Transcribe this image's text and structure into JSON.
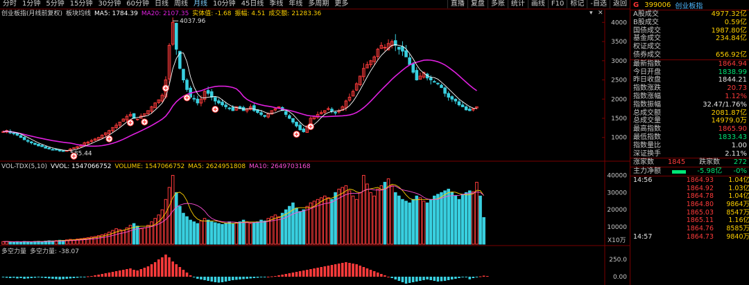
{
  "toolbar": {
    "periods": [
      "分时",
      "1分钟",
      "5分钟",
      "15分钟",
      "30分钟",
      "60分钟",
      "日线",
      "周线",
      "月线",
      "10分钟",
      "45日线",
      "季线",
      "年线",
      "多周期",
      "更多"
    ],
    "active_period": "月线",
    "tools": [
      "直播",
      "复盘",
      "多账",
      "统计",
      "画线",
      "F10",
      "标记",
      "-自选",
      "返回"
    ]
  },
  "chart_info": {
    "name": "创业板指(月线前复权)",
    "indicator": "板块均线",
    "ma5_label": "MA5: 1784.39",
    "ma20_label": "MA20: 2107.35",
    "body_label": "实体值: -1.68",
    "amp_label": "振幅: 4.51",
    "amount_label": "成交额: 21283.36",
    "max_price_label": "4037.96",
    "min_price_label": "585.44"
  },
  "vol_info": {
    "name": "VOL-TDX(5,10)",
    "vvol": "VVOL: 1547066752",
    "volume": "VOLUME: 1547066752",
    "ma5": "MA5: 2624951808",
    "ma10": "MA10: 2649703168",
    "unit": "X10万"
  },
  "osc_info": {
    "name": "多空力量",
    "value": "多空力量: -38.07"
  },
  "axes": {
    "price_ticks": [
      "4000",
      "3500",
      "3000",
      "2500",
      "2000",
      "1500",
      "1000"
    ],
    "vol_ticks": [
      "40000",
      "30000",
      "20000",
      "10000"
    ],
    "osc_ticks": [
      "250.0",
      "0.00"
    ]
  },
  "colors": {
    "up": "#ff3b3b",
    "down": "#39d0e0",
    "ma5": "#ffffff",
    "ma20": "#e020e0",
    "ma_vol10": "#ff4fd8"
  },
  "quote": {
    "code": "399006",
    "name": "创业板指",
    "flag": "G",
    "rows1": [
      {
        "label": "A股成交",
        "value": "4977.32亿",
        "cls": "yel"
      },
      {
        "label": "B股成交",
        "value": "0.59亿",
        "cls": "yel"
      },
      {
        "label": "国债成交",
        "value": "1987.80亿",
        "cls": "yel"
      },
      {
        "label": "基金成交",
        "value": "234.84亿",
        "cls": "yel"
      },
      {
        "label": "权证成交",
        "value": "",
        "cls": "yel"
      },
      {
        "label": "债券成交",
        "value": "656.92亿",
        "cls": "yel"
      }
    ],
    "rows2": [
      {
        "label": "最新指数",
        "value": "1864.94",
        "cls": "red"
      },
      {
        "label": "今日开盘",
        "value": "1838.99",
        "cls": "grn"
      },
      {
        "label": "昨日收盘",
        "value": "1844.21",
        "cls": "wht"
      },
      {
        "label": "指数涨跌",
        "value": "20.73",
        "cls": "red"
      },
      {
        "label": "指数涨幅",
        "value": "1.12%",
        "cls": "red"
      },
      {
        "label": "指数振幅",
        "value": "32.47/1.76%",
        "cls": "wht"
      },
      {
        "label": "总成交额",
        "value": "2081.87亿",
        "cls": "yel"
      },
      {
        "label": "总成交量",
        "value": "14979.0万",
        "cls": "yel"
      },
      {
        "label": "最高指数",
        "value": "1865.90",
        "cls": "red"
      },
      {
        "label": "最低指数",
        "value": "1833.43",
        "cls": "grn"
      },
      {
        "label": "指数量比",
        "value": "1.00",
        "cls": "wht"
      },
      {
        "label": "深证换手",
        "value": "2.11%",
        "cls": "wht"
      }
    ],
    "rise_label": "涨家数",
    "rise_value": "1845",
    "fall_label": "跌家数",
    "fall_value": "272",
    "flow_label": "主力净额",
    "flow_value": "-5.98亿",
    "flow_pct": "-0%",
    "ticks": [
      {
        "t": "14:56",
        "p": "1864.93",
        "v": "1.04亿"
      },
      {
        "t": "",
        "p": "1864.92",
        "v": "1.03亿"
      },
      {
        "t": "",
        "p": "1864.78",
        "v": "1.04亿"
      },
      {
        "t": "",
        "p": "1864.80",
        "v": "9864万"
      },
      {
        "t": "",
        "p": "1865.03",
        "v": "8547万"
      },
      {
        "t": "",
        "p": "1865.11",
        "v": "1.16亿"
      },
      {
        "t": "",
        "p": "1864.76",
        "v": "8585万"
      },
      {
        "t": "14:57",
        "p": "1864.73",
        "v": "9840万"
      }
    ]
  },
  "chart_data": [
    {
      "type": "candlestick",
      "series": [
        {
          "name": "MA5",
          "values": []
        },
        {
          "name": "MA20",
          "values": []
        }
      ],
      "yticks": [
        4000,
        3500,
        3000,
        2500,
        2000,
        1500,
        1000
      ],
      "ylim": [
        400,
        4150
      ],
      "annotations": [
        "4037.96",
        "585.44"
      ],
      "shape": [
        1150,
        1180,
        1120,
        1100,
        1060,
        1000,
        940,
        900,
        860,
        820,
        780,
        760,
        720,
        700,
        680,
        680,
        650,
        640,
        660,
        700,
        730,
        760,
        810,
        860,
        880,
        920,
        960,
        1000,
        1060,
        1120,
        1180,
        1260,
        1320,
        1400,
        1480,
        1550,
        1600,
        1500,
        1480,
        1560,
        1620,
        1700,
        1800,
        1900,
        1980,
        2100,
        2500,
        3400,
        4000,
        3300,
        2800,
        2500,
        2250,
        2050,
        2000,
        1900,
        2000,
        2200,
        2150,
        2050,
        1950,
        1900,
        1850,
        1800,
        1750,
        1700,
        1800,
        1750,
        1700,
        1750,
        1800,
        1700,
        1650,
        1600,
        1550,
        1620,
        1700,
        1750,
        1800,
        1700,
        1600,
        1500,
        1400,
        1300,
        1200,
        1150,
        1300,
        1500,
        1550,
        1600,
        1650,
        1700,
        1750,
        1680,
        1650,
        1700,
        1800,
        1950,
        2050,
        2200,
        2400,
        2600,
        2800,
        2900,
        3000,
        3100,
        3300,
        3400,
        3350,
        3450,
        3500,
        3400,
        3300,
        3250,
        3100,
        2900,
        2700,
        2500,
        2600,
        2700,
        2550,
        2500,
        2450,
        2400,
        2300,
        2150,
        2050,
        2000,
        1950,
        1850,
        1800,
        1720,
        1700,
        1750,
        1800
      ]
    },
    {
      "type": "bar",
      "title": "VOL-TDX(5,10)",
      "yticks": [
        40000,
        30000,
        20000,
        10000
      ],
      "ylim": [
        0,
        43000
      ],
      "values": [
        1500,
        1600,
        1400,
        1300,
        1500,
        1400,
        1600,
        1500,
        1400,
        1600,
        1700,
        1500,
        1800,
        2000,
        1900,
        2100,
        2300,
        2200,
        2500,
        2800,
        2600,
        3000,
        3200,
        3500,
        3800,
        4200,
        4500,
        5000,
        5500,
        6000,
        7000,
        8000,
        9000,
        8500,
        8000,
        9500,
        11000,
        12000,
        10500,
        9000,
        9500,
        11000,
        13000,
        15000,
        17000,
        20000,
        26000,
        33000,
        40000,
        30000,
        22000,
        18000,
        16000,
        14000,
        13000,
        12000,
        13500,
        15000,
        14000,
        13000,
        12500,
        12000,
        11500,
        12000,
        13000,
        12000,
        12500,
        13000,
        14000,
        13000,
        12000,
        12500,
        13000,
        14000,
        13500,
        15000,
        16000,
        17000,
        16000,
        18000,
        20000,
        22000,
        24000,
        21000,
        19000,
        20000,
        22000,
        24000,
        25000,
        26000,
        27000,
        28000,
        27000,
        26000,
        30000,
        32000,
        33000,
        34000,
        31000,
        28000,
        26000,
        30000,
        40000,
        35000,
        30000,
        28000,
        32000,
        34000,
        36000,
        38000,
        34000,
        30000,
        28000,
        26000,
        25000,
        24000,
        26000,
        28000,
        27000,
        25000,
        24000,
        26000,
        28000,
        29000,
        30000,
        31000,
        32000,
        30000,
        28000,
        26000,
        29000,
        30000,
        31000,
        30500,
        36000,
        28000,
        15500
      ],
      "unit": "X10万"
    },
    {
      "type": "bar",
      "title": "多空力量",
      "yticks": [
        250.0,
        0.0
      ],
      "ylim": [
        -100,
        320
      ],
      "values": [
        -10,
        -15,
        -20,
        -15,
        -25,
        -20,
        -30,
        -25,
        -20,
        -15,
        -10,
        -15,
        -20,
        -25,
        -30,
        -35,
        -40,
        -35,
        -30,
        -25,
        -20,
        -15,
        -10,
        -5,
        5,
        10,
        20,
        30,
        40,
        50,
        60,
        70,
        80,
        90,
        100,
        110,
        120,
        100,
        90,
        110,
        130,
        150,
        180,
        210,
        250,
        280,
        320,
        280,
        220,
        180,
        140,
        100,
        60,
        20,
        -10,
        -30,
        -40,
        -50,
        -60,
        -70,
        -80,
        -85,
        -80,
        -70,
        -60,
        -50,
        -45,
        -40,
        -35,
        -30,
        -25,
        -20,
        -15,
        -10,
        -5,
        0,
        5,
        10,
        20,
        30,
        40,
        50,
        60,
        70,
        80,
        90,
        100,
        110,
        120,
        130,
        140,
        150,
        160,
        170,
        180,
        190,
        200,
        210,
        200,
        190,
        180,
        160,
        140,
        120,
        100,
        80,
        60,
        40,
        20,
        0,
        -20,
        -40,
        -60,
        -80,
        -100,
        -90,
        -80,
        -70,
        -60,
        -50,
        -40,
        -50,
        -60,
        -70,
        -65,
        -60,
        -50,
        -40,
        -30,
        -20,
        -10,
        -5,
        -38,
        -20,
        -10,
        5,
        15,
        10
      ]
    }
  ]
}
